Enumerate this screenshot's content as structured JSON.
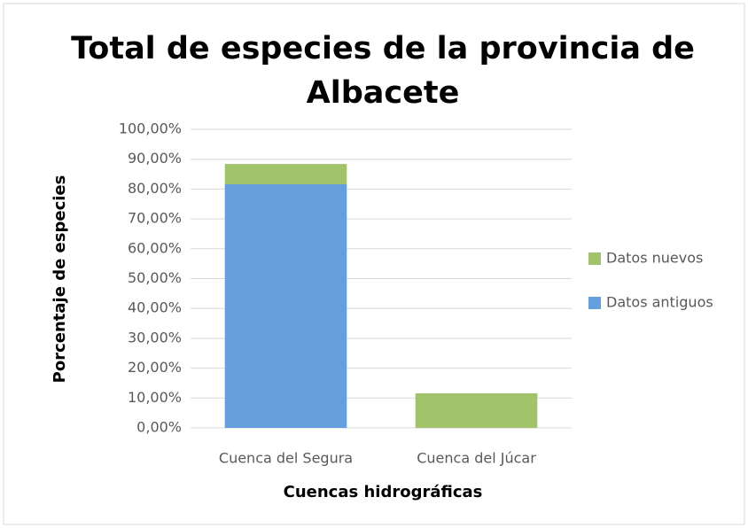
{
  "chart_data": {
    "type": "stacked_bar",
    "title": "Total de especies de la provincia de Albacete",
    "x_label": "Cuencas hidrográficas",
    "y_label": "Porcentaje de especies",
    "categories": [
      "Cuenca del Segura",
      "Cuenca del Júcar"
    ],
    "series": [
      {
        "name": "Datos antiguos",
        "color": "#659fdd",
        "values": [
          81.6,
          0
        ]
      },
      {
        "name": "Datos nuevos",
        "color": "#a1c46a",
        "values": [
          6.8,
          11.6
        ]
      }
    ],
    "ylim": [
      0,
      100
    ],
    "yticks": [
      {
        "value": 0,
        "label": "0,00%"
      },
      {
        "value": 10,
        "label": "10,00%"
      },
      {
        "value": 20,
        "label": "20,00%"
      },
      {
        "value": 30,
        "label": "30,00%"
      },
      {
        "value": 40,
        "label": "40,00%"
      },
      {
        "value": 50,
        "label": "50,00%"
      },
      {
        "value": 60,
        "label": "60,00%"
      },
      {
        "value": 70,
        "label": "70,00%"
      },
      {
        "value": 80,
        "label": "80,00%"
      },
      {
        "value": 90,
        "label": "90,00%"
      },
      {
        "value": 100,
        "label": "100,00%"
      }
    ],
    "grid": true,
    "legend": "right"
  }
}
